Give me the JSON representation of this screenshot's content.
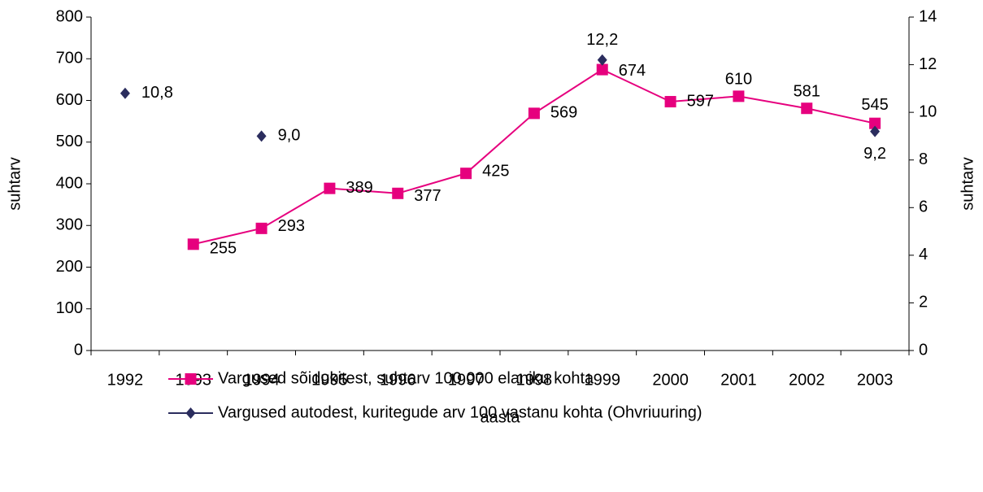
{
  "chart_data": {
    "type": "line",
    "categories": [
      "1992",
      "1993",
      "1994",
      "1995",
      "1996",
      "1997",
      "1998",
      "1999",
      "2000",
      "2001",
      "2002",
      "2003"
    ],
    "series": [
      {
        "name": "Vargused sõidukitest, suhtarv 100 000 elaniku kohta",
        "color": "#e6007e",
        "marker": "square",
        "values": [
          null,
          255,
          293,
          389,
          377,
          425,
          569,
          674,
          597,
          610,
          581,
          545
        ]
      },
      {
        "name": "Vargused autodest, kuritegude arv 100 vastanu kohta (Ohvriuuring)",
        "color": "#2b2d5e",
        "marker": "diamond",
        "axis": "y2",
        "values": [
          10.8,
          null,
          9.0,
          null,
          null,
          null,
          null,
          12.2,
          null,
          null,
          null,
          9.2
        ],
        "value_labels": [
          "10,8",
          null,
          "9,0",
          null,
          null,
          null,
          null,
          "12,2",
          null,
          null,
          null,
          "9,2"
        ]
      }
    ],
    "xlabel": "aasta",
    "ylabel": "suhtarv",
    "y2label": "suhtarv",
    "ylim": [
      0,
      800
    ],
    "yticks": [
      0,
      100,
      200,
      300,
      400,
      500,
      600,
      700,
      800
    ],
    "y2lim": [
      0,
      14
    ],
    "y2ticks": [
      0,
      2,
      4,
      6,
      8,
      10,
      12,
      14
    ],
    "legend": "bottom"
  }
}
